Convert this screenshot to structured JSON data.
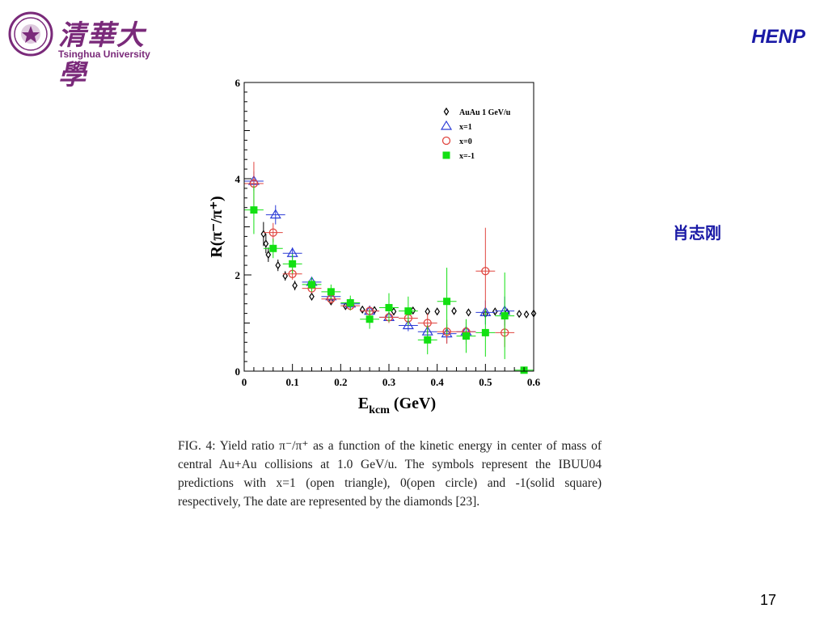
{
  "header": {
    "logo_text_cn": "清華大學",
    "logo_text_en": "Tsinghua University",
    "tag": "HENP"
  },
  "author": "肖志刚",
  "page_number": "17",
  "caption": "FIG. 4: Yield ratio π⁻/π⁺ as a function of the kinetic energy in center of mass of central Au+Au collisions at 1.0 GeV/u.  The symbols represent the IBUU04 predictions with x=1 (open triangle), 0(open circle) and -1(solid square) respectively, The date are represented by the diamonds [23].",
  "colors": {
    "brand_purple": "#7a2a7a",
    "accent_blue": "#1a1aa6",
    "series_triangle": "#2b3bd6",
    "series_circle": "#e0453f",
    "series_square": "#12e012",
    "series_diamond": "#000000"
  },
  "chart_data": {
    "type": "scatter",
    "title": "",
    "xlabel": "E_kcm (GeV)",
    "ylabel": "R(π⁻/π⁺)",
    "xlim": [
      0,
      0.6
    ],
    "ylim": [
      0,
      6
    ],
    "xticks": [
      "0",
      "0.1",
      "0.2",
      "0.3",
      "0.4",
      "0.5",
      "0.6"
    ],
    "yticks": [
      "0",
      "2",
      "4",
      "6"
    ],
    "legend_position": "top-right",
    "series": [
      {
        "name": "AuAu 1 GeV/u",
        "marker": "diamond",
        "points": [
          {
            "x": 0.04,
            "y": 2.85,
            "err": 0.25
          },
          {
            "x": 0.045,
            "y": 2.65,
            "err": 0.2
          },
          {
            "x": 0.05,
            "y": 2.42,
            "err": 0.15
          },
          {
            "x": 0.07,
            "y": 2.2,
            "err": 0.12
          },
          {
            "x": 0.085,
            "y": 1.98,
            "err": 0.1
          },
          {
            "x": 0.105,
            "y": 1.78,
            "err": 0.1
          },
          {
            "x": 0.14,
            "y": 1.55,
            "err": 0.08
          },
          {
            "x": 0.18,
            "y": 1.45,
            "err": 0.07
          },
          {
            "x": 0.21,
            "y": 1.35,
            "err": 0.06
          },
          {
            "x": 0.245,
            "y": 1.28,
            "err": 0.06
          },
          {
            "x": 0.27,
            "y": 1.27,
            "err": 0.06
          },
          {
            "x": 0.31,
            "y": 1.24,
            "err": 0.06
          },
          {
            "x": 0.35,
            "y": 1.26,
            "err": 0.06
          },
          {
            "x": 0.38,
            "y": 1.24,
            "err": 0.06
          },
          {
            "x": 0.4,
            "y": 1.24,
            "err": 0.06
          },
          {
            "x": 0.435,
            "y": 1.25,
            "err": 0.06
          },
          {
            "x": 0.465,
            "y": 1.22,
            "err": 0.06
          },
          {
            "x": 0.5,
            "y": 1.19,
            "err": 0.06
          },
          {
            "x": 0.52,
            "y": 1.24,
            "err": 0.06
          },
          {
            "x": 0.545,
            "y": 1.22,
            "err": 0.06
          },
          {
            "x": 0.57,
            "y": 1.19,
            "err": 0.06
          },
          {
            "x": 0.585,
            "y": 1.18,
            "err": 0.06
          },
          {
            "x": 0.6,
            "y": 1.2,
            "err": 0.06
          }
        ]
      },
      {
        "name": "x=1",
        "marker": "triangle",
        "points": [
          {
            "x": 0.02,
            "y": 3.95,
            "err": 0.2
          },
          {
            "x": 0.065,
            "y": 3.25,
            "err": 0.2
          },
          {
            "x": 0.1,
            "y": 2.45,
            "err": 0.12
          },
          {
            "x": 0.14,
            "y": 1.85,
            "err": 0.1
          },
          {
            "x": 0.18,
            "y": 1.55,
            "err": 0.1
          },
          {
            "x": 0.22,
            "y": 1.4,
            "err": 0.1
          },
          {
            "x": 0.26,
            "y": 1.25,
            "err": 0.1
          },
          {
            "x": 0.3,
            "y": 1.12,
            "err": 0.12
          },
          {
            "x": 0.34,
            "y": 0.95,
            "err": 0.12
          },
          {
            "x": 0.38,
            "y": 0.82,
            "err": 0.15
          },
          {
            "x": 0.42,
            "y": 0.78,
            "err": 0.2
          },
          {
            "x": 0.46,
            "y": 0.82,
            "err": 0.2
          },
          {
            "x": 0.5,
            "y": 1.22,
            "err": 0.25
          },
          {
            "x": 0.54,
            "y": 1.25,
            "err": 0.3
          }
        ]
      },
      {
        "name": "x=0",
        "marker": "circle",
        "points": [
          {
            "x": 0.02,
            "y": 3.9,
            "err": 0.45
          },
          {
            "x": 0.06,
            "y": 2.88,
            "err": 0.2
          },
          {
            "x": 0.1,
            "y": 2.02,
            "err": 0.12
          },
          {
            "x": 0.14,
            "y": 1.72,
            "err": 0.1
          },
          {
            "x": 0.18,
            "y": 1.5,
            "err": 0.1
          },
          {
            "x": 0.22,
            "y": 1.36,
            "err": 0.1
          },
          {
            "x": 0.26,
            "y": 1.25,
            "err": 0.1
          },
          {
            "x": 0.3,
            "y": 1.12,
            "err": 0.12
          },
          {
            "x": 0.34,
            "y": 1.1,
            "err": 0.15
          },
          {
            "x": 0.38,
            "y": 1.0,
            "err": 0.2
          },
          {
            "x": 0.42,
            "y": 0.82,
            "err": 0.25
          },
          {
            "x": 0.46,
            "y": 0.82,
            "err": 0.25
          },
          {
            "x": 0.5,
            "y": 2.08,
            "err": 0.9
          },
          {
            "x": 0.54,
            "y": 0.8,
            "err": 0.3
          }
        ]
      },
      {
        "name": "x=-1",
        "marker": "square",
        "points": [
          {
            "x": 0.02,
            "y": 3.35,
            "err": 0.5
          },
          {
            "x": 0.06,
            "y": 2.55,
            "err": 0.2
          },
          {
            "x": 0.1,
            "y": 2.23,
            "err": 0.2
          },
          {
            "x": 0.14,
            "y": 1.8,
            "err": 0.15
          },
          {
            "x": 0.18,
            "y": 1.65,
            "err": 0.15
          },
          {
            "x": 0.22,
            "y": 1.42,
            "err": 0.15
          },
          {
            "x": 0.26,
            "y": 1.08,
            "err": 0.2
          },
          {
            "x": 0.3,
            "y": 1.32,
            "err": 0.3
          },
          {
            "x": 0.34,
            "y": 1.25,
            "err": 0.3
          },
          {
            "x": 0.38,
            "y": 0.65,
            "err": 0.3
          },
          {
            "x": 0.42,
            "y": 1.45,
            "err": 0.7
          },
          {
            "x": 0.46,
            "y": 0.73,
            "err": 0.35
          },
          {
            "x": 0.5,
            "y": 0.8,
            "err": 0.5
          },
          {
            "x": 0.54,
            "y": 1.15,
            "err": 0.9
          },
          {
            "x": 0.58,
            "y": 0.02,
            "err": 0.05
          }
        ]
      }
    ]
  }
}
